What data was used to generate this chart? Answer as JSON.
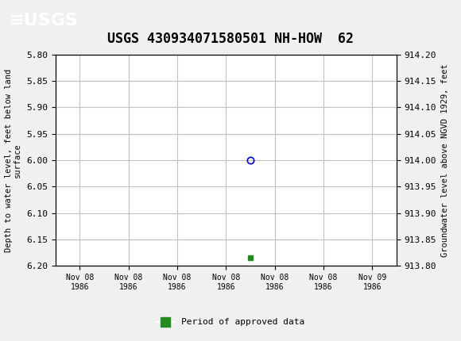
{
  "title": "USGS 430934071580501 NH-HOW  62",
  "header_color": "#1a6b3c",
  "bg_color": "#f0f0f0",
  "plot_bg_color": "#ffffff",
  "left_ylabel": "Depth to water level, feet below land\nsurface",
  "right_ylabel": "Groundwater level above NGVD 1929, feet",
  "ylim_left": [
    5.8,
    6.2
  ],
  "ylim_right": [
    913.8,
    914.2
  ],
  "yticks_left": [
    5.8,
    5.85,
    5.9,
    5.95,
    6.0,
    6.05,
    6.1,
    6.15,
    6.2
  ],
  "yticks_right": [
    913.8,
    913.85,
    913.9,
    913.95,
    914.0,
    914.05,
    914.1,
    914.15,
    914.2
  ],
  "data_point_x": 3.5,
  "data_point_y": 6.0,
  "data_point_color": "#0000cc",
  "green_marker_x": 3.5,
  "green_marker_y": 6.185,
  "green_color": "#228B22",
  "legend_label": "Period of approved data",
  "xtick_labels": [
    "Nov 08\n1986",
    "Nov 08\n1986",
    "Nov 08\n1986",
    "Nov 08\n1986",
    "Nov 08\n1986",
    "Nov 08\n1986",
    "Nov 09\n1986"
  ],
  "xtick_positions": [
    0,
    1,
    2,
    3,
    4,
    5,
    6
  ],
  "font_family": "monospace",
  "grid_color": "#c0c0c0"
}
